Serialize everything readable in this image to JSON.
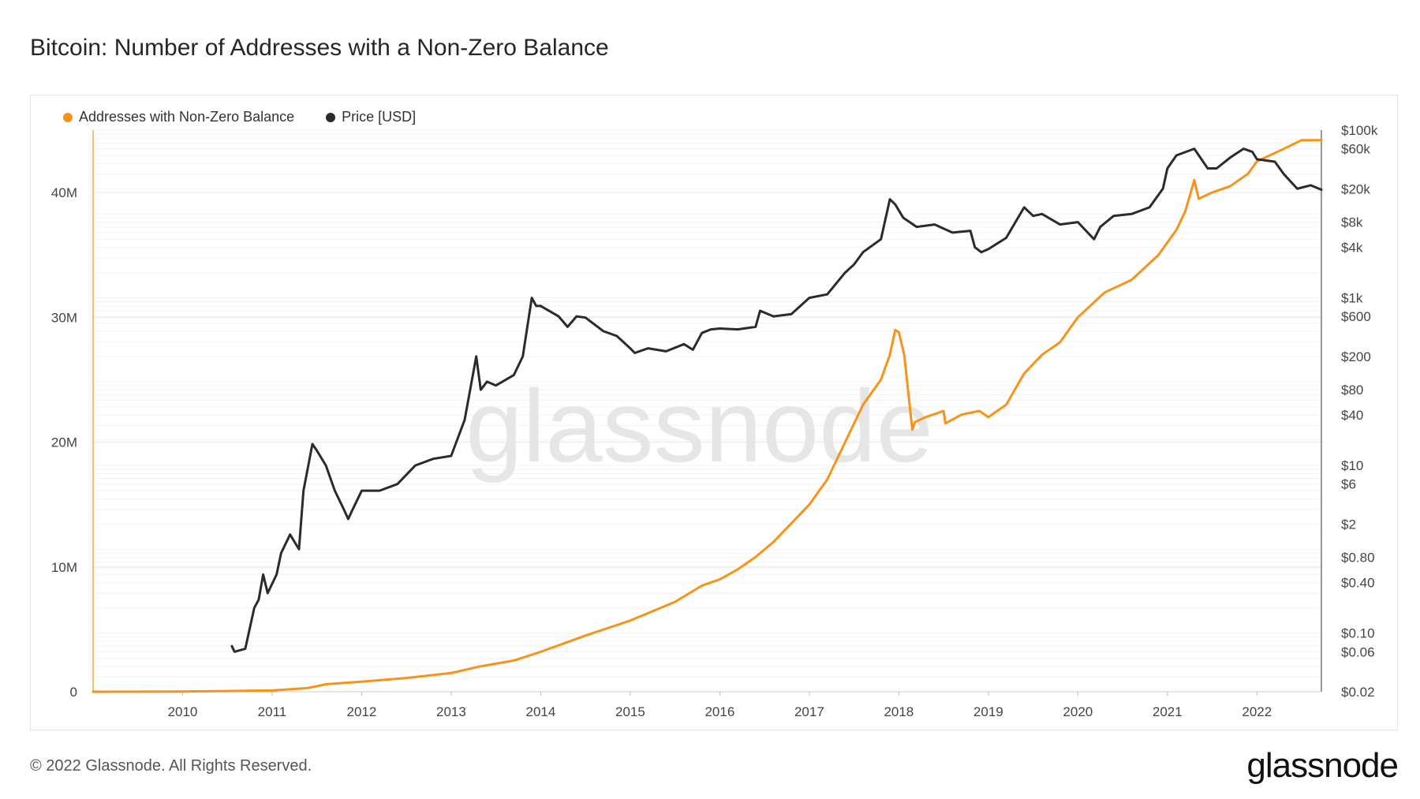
{
  "title": "Bitcoin: Number of Addresses with a Non-Zero Balance",
  "footer": "© 2022 Glassnode. All Rights Reserved.",
  "logo": "glassnode",
  "watermark": "glassnode",
  "colors": {
    "addresses": "#f7931a",
    "price": "#2b2b2b",
    "grid": "#eeeeee"
  },
  "chart_data": {
    "type": "line",
    "x_ticks": [
      "2010",
      "2011",
      "2012",
      "2013",
      "2014",
      "2015",
      "2016",
      "2017",
      "2018",
      "2019",
      "2020",
      "2021",
      "2022"
    ],
    "y_left_ticks": [
      "0",
      "10M",
      "20M",
      "30M",
      "40M"
    ],
    "y_left_range": [
      0,
      45000000
    ],
    "y_right_ticks": [
      "$100k",
      "$60k",
      "$20k",
      "$8k",
      "$4k",
      "$1k",
      "$600",
      "$200",
      "$80",
      "$40",
      "$10",
      "$6",
      "$2",
      "$0.80",
      "$0.40",
      "$0.10",
      "$0.06",
      "$0.02"
    ],
    "y_right_range": [
      0.02,
      100000
    ],
    "y_right_scale": "log",
    "legend_position": "top-left",
    "series": [
      {
        "name": "Addresses with Non-Zero Balance",
        "axis": "left",
        "color": "#f7931a",
        "x": [
          2009.0,
          2010.0,
          2011.0,
          2011.4,
          2011.6,
          2012.0,
          2012.5,
          2013.0,
          2013.3,
          2013.7,
          2014.0,
          2014.5,
          2015.0,
          2015.5,
          2015.8,
          2016.0,
          2016.2,
          2016.4,
          2016.6,
          2016.8,
          2017.0,
          2017.2,
          2017.4,
          2017.6,
          2017.8,
          2017.9,
          2017.96,
          2018.0,
          2018.06,
          2018.15,
          2018.18,
          2018.3,
          2018.5,
          2018.52,
          2018.7,
          2018.9,
          2019.0,
          2019.2,
          2019.4,
          2019.6,
          2019.8,
          2020.0,
          2020.3,
          2020.6,
          2020.9,
          2021.0,
          2021.1,
          2021.2,
          2021.3,
          2021.35,
          2021.5,
          2021.7,
          2021.9,
          2022.0,
          2022.3,
          2022.5,
          2022.72
        ],
        "y": [
          0,
          20000,
          100000,
          300000,
          600000,
          800000,
          1100000,
          1500000,
          2000000,
          2500000,
          3200000,
          4500000,
          5700000,
          7200000,
          8500000,
          9000000,
          9800000,
          10800000,
          12000000,
          13500000,
          15000000,
          17000000,
          20000000,
          23000000,
          25000000,
          27000000,
          29000000,
          28800000,
          27000000,
          21000000,
          21600000,
          22000000,
          22500000,
          21500000,
          22200000,
          22500000,
          22000000,
          23000000,
          25500000,
          27000000,
          28000000,
          30000000,
          32000000,
          33000000,
          35000000,
          36000000,
          37000000,
          38500000,
          41000000,
          39500000,
          40000000,
          40500000,
          41500000,
          42500000,
          43500000,
          44200000,
          44200000
        ]
      },
      {
        "name": "Price [USD]",
        "axis": "right",
        "color": "#2b2b2b",
        "x": [
          2010.55,
          2010.58,
          2010.7,
          2010.8,
          2010.85,
          2010.9,
          2010.95,
          2011.05,
          2011.1,
          2011.2,
          2011.3,
          2011.35,
          2011.45,
          2011.5,
          2011.6,
          2011.7,
          2011.8,
          2011.85,
          2011.9,
          2012.0,
          2012.2,
          2012.4,
          2012.6,
          2012.8,
          2013.0,
          2013.15,
          2013.28,
          2013.33,
          2013.4,
          2013.5,
          2013.7,
          2013.8,
          2013.9,
          2013.95,
          2014.0,
          2014.2,
          2014.3,
          2014.4,
          2014.5,
          2014.7,
          2014.85,
          2015.0,
          2015.05,
          2015.2,
          2015.4,
          2015.6,
          2015.7,
          2015.8,
          2015.9,
          2016.0,
          2016.2,
          2016.4,
          2016.45,
          2016.6,
          2016.8,
          2017.0,
          2017.2,
          2017.4,
          2017.5,
          2017.6,
          2017.8,
          2017.9,
          2017.96,
          2018.05,
          2018.2,
          2018.4,
          2018.6,
          2018.8,
          2018.85,
          2018.92,
          2019.0,
          2019.2,
          2019.4,
          2019.5,
          2019.6,
          2019.8,
          2020.0,
          2020.18,
          2020.25,
          2020.4,
          2020.6,
          2020.8,
          2020.95,
          2021.0,
          2021.1,
          2021.3,
          2021.45,
          2021.55,
          2021.7,
          2021.85,
          2021.95,
          2022.0,
          2022.2,
          2022.3,
          2022.45,
          2022.6,
          2022.72
        ],
        "y": [
          0.07,
          0.06,
          0.065,
          0.2,
          0.25,
          0.5,
          0.3,
          0.5,
          0.9,
          1.5,
          1.0,
          5,
          18,
          15,
          10,
          5,
          3,
          2.3,
          3.0,
          5.0,
          5.0,
          6.0,
          10,
          12,
          13,
          35,
          200,
          80,
          100,
          90,
          120,
          200,
          1000,
          800,
          800,
          600,
          450,
          600,
          580,
          400,
          350,
          250,
          220,
          250,
          230,
          280,
          240,
          380,
          420,
          430,
          420,
          450,
          700,
          600,
          640,
          1000,
          1100,
          2000,
          2500,
          3500,
          5000,
          15000,
          13000,
          9000,
          7000,
          7500,
          6000,
          6300,
          4000,
          3500,
          3800,
          5200,
          12000,
          9500,
          10000,
          7500,
          8000,
          5000,
          7000,
          9500,
          10000,
          12000,
          20000,
          35000,
          50000,
          60000,
          35000,
          35000,
          47000,
          60000,
          55000,
          45000,
          42000,
          30000,
          20000,
          22000,
          19500
        ]
      }
    ]
  }
}
